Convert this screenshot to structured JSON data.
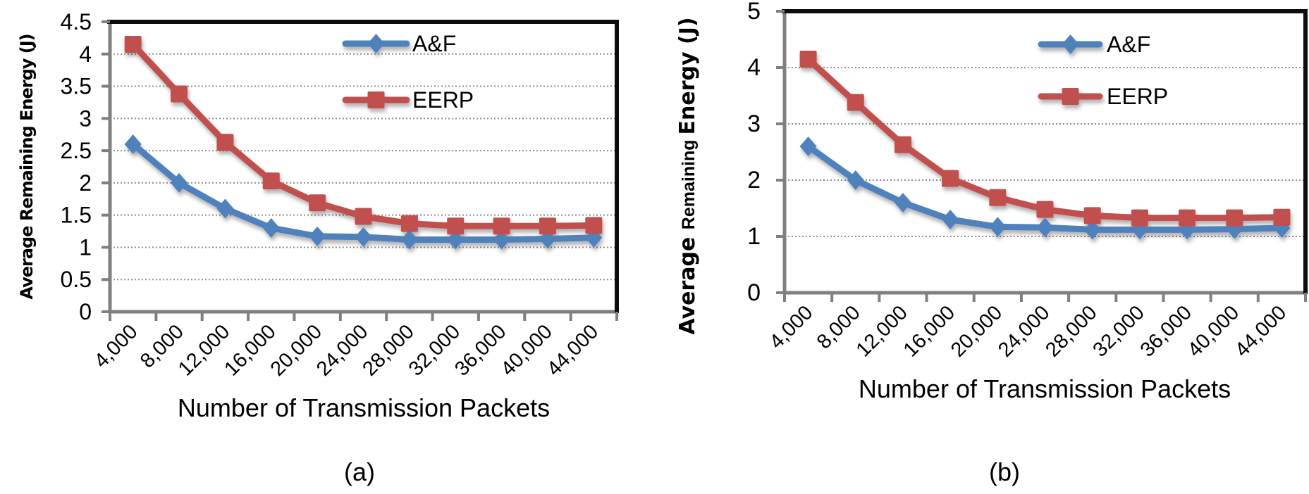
{
  "chart_data": [
    {
      "type": "line",
      "caption": "(a)",
      "title": "",
      "xlabel": "Number of Transmission Packets",
      "ylabel": "Average Remaining Energy (J)",
      "ylabel_parts": [
        {
          "text": "Average Remaining Energy (J)",
          "wide": true
        }
      ],
      "ylim": [
        0,
        4.5
      ],
      "y_tick_labels": [
        "0",
        "0.5",
        "1",
        "1.5",
        "2",
        "2.5",
        "3",
        "3.5",
        "4",
        "4.5"
      ],
      "grid": "horizontal-dotted",
      "legend_position": "top-center-stacked",
      "categories": [
        "4,000",
        "8,000",
        "12,000",
        "16,000",
        "20,000",
        "24,000",
        "28,000",
        "32,000",
        "36,000",
        "40,000",
        "44,000"
      ],
      "series": [
        {
          "name": "A&F",
          "color": "#4F81BD",
          "marker": "diamond",
          "values": [
            2.6,
            2.0,
            1.6,
            1.3,
            1.17,
            1.16,
            1.12,
            1.12,
            1.12,
            1.13,
            1.15
          ]
        },
        {
          "name": "EERP",
          "color": "#C0504D",
          "marker": "square",
          "values": [
            4.15,
            3.38,
            2.63,
            2.03,
            1.69,
            1.48,
            1.37,
            1.33,
            1.33,
            1.33,
            1.34
          ]
        }
      ]
    },
    {
      "type": "line",
      "caption": "(b)",
      "title": "",
      "xlabel": "Number of Transmission Packets",
      "ylabel": "Average Remaining Energy (J)",
      "ylabel_parts": [
        {
          "text": "Average ",
          "wide": true
        },
        {
          "text": "Remaining ",
          "wide": false
        },
        {
          "text": "Energy (J)",
          "wide": true
        }
      ],
      "ylim": [
        0,
        5
      ],
      "y_tick_labels": [
        "0",
        "1",
        "2",
        "3",
        "4",
        "5"
      ],
      "grid": "horizontal-dotted",
      "legend_position": "top-center-stacked",
      "categories": [
        "4,000",
        "8,000",
        "12,000",
        "16,000",
        "20,000",
        "24,000",
        "28,000",
        "32,000",
        "36,000",
        "40,000",
        "44,000"
      ],
      "series": [
        {
          "name": "A&F",
          "color": "#4F81BD",
          "marker": "diamond",
          "values": [
            2.6,
            2.0,
            1.6,
            1.3,
            1.17,
            1.16,
            1.12,
            1.12,
            1.12,
            1.13,
            1.15
          ]
        },
        {
          "name": "EERP",
          "color": "#C0504D",
          "marker": "square",
          "values": [
            4.15,
            3.38,
            2.63,
            2.03,
            1.69,
            1.48,
            1.37,
            1.33,
            1.33,
            1.33,
            1.34
          ]
        }
      ]
    }
  ]
}
